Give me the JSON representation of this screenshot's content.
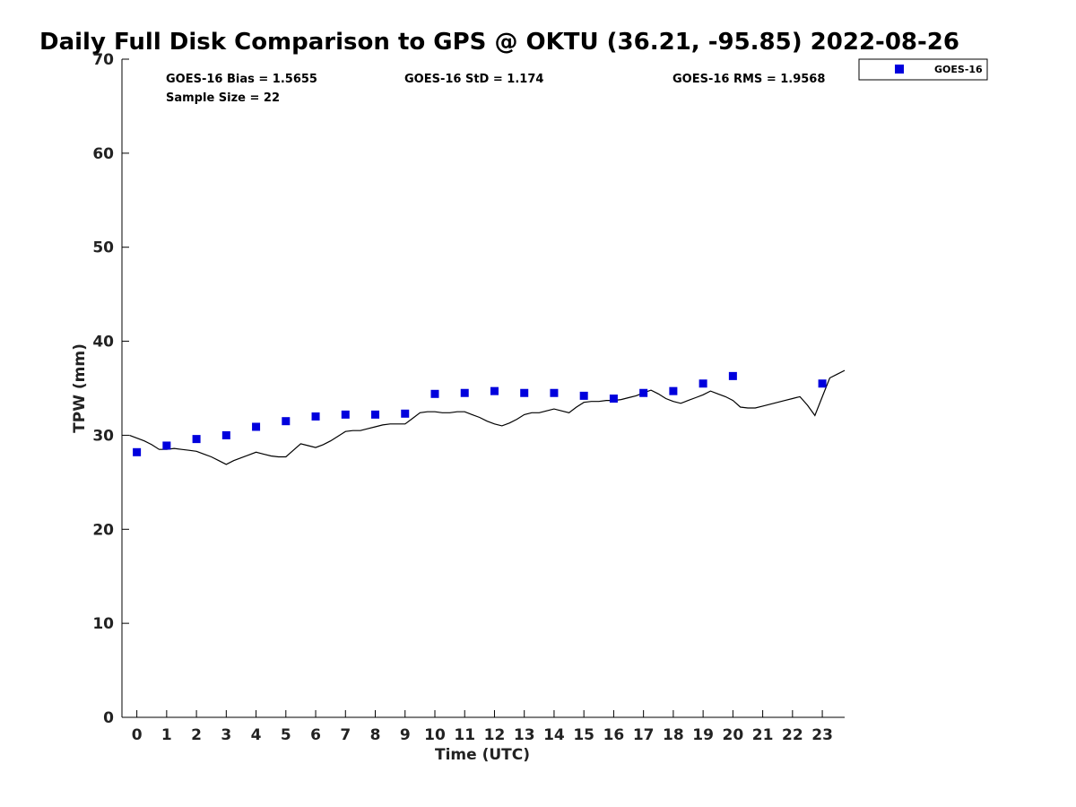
{
  "chart_data": {
    "type": "scatter",
    "title": "Daily Full Disk Comparison to GPS @ OKTU (36.21, -95.85) 2022-08-26",
    "xlabel": "Time (UTC)",
    "ylabel": "TPW (mm)",
    "xlim": [
      -0.5,
      23.75
    ],
    "ylim": [
      0,
      70
    ],
    "x_ticks": [
      0,
      1,
      2,
      3,
      4,
      5,
      6,
      7,
      8,
      9,
      10,
      11,
      12,
      13,
      14,
      15,
      16,
      17,
      18,
      19,
      20,
      21,
      22,
      23
    ],
    "y_ticks": [
      0,
      10,
      20,
      30,
      40,
      50,
      60,
      70
    ],
    "stats": {
      "bias": "GOES-16 Bias = 1.5655",
      "std": "GOES-16 StD = 1.174",
      "rms": "GOES-16 RMS = 1.9568",
      "sample_size": "Sample Size = 22"
    },
    "legend": {
      "position": "outside-top-right",
      "entries": [
        {
          "label": "GOES-16",
          "color": "#0000dd",
          "marker": "square"
        }
      ]
    },
    "series": [
      {
        "name": "GOES-16",
        "kind": "scatter",
        "color": "#0000dd",
        "x": [
          0,
          1,
          2,
          3,
          4,
          5,
          6,
          7,
          8,
          9,
          10,
          11,
          12,
          13,
          14,
          15,
          16,
          17,
          18,
          19,
          20,
          23
        ],
        "y": [
          28.2,
          28.9,
          29.6,
          30.0,
          30.9,
          31.5,
          32.0,
          32.2,
          32.2,
          32.3,
          34.4,
          34.5,
          34.7,
          34.5,
          34.5,
          34.2,
          33.9,
          34.5,
          34.7,
          35.5,
          36.3,
          35.5
        ]
      },
      {
        "kind": "line",
        "color": "#000000",
        "x": [
          -0.25,
          0,
          0.25,
          0.5,
          0.75,
          1,
          1.25,
          1.5,
          1.75,
          2,
          2.25,
          2.5,
          2.75,
          3,
          3.25,
          3.5,
          3.75,
          4,
          4.25,
          4.5,
          4.75,
          5,
          5.25,
          5.5,
          5.75,
          6,
          6.25,
          6.5,
          6.75,
          7,
          7.25,
          7.5,
          7.75,
          8,
          8.25,
          8.5,
          8.75,
          9,
          9.25,
          9.5,
          9.75,
          10,
          10.25,
          10.5,
          10.75,
          11,
          11.25,
          11.5,
          11.75,
          12,
          12.25,
          12.5,
          12.75,
          13,
          13.25,
          13.5,
          13.75,
          14,
          14.25,
          14.5,
          14.75,
          15,
          15.25,
          15.5,
          15.75,
          16,
          16.25,
          16.5,
          16.75,
          17,
          17.25,
          17.5,
          17.75,
          18,
          18.25,
          18.5,
          18.75,
          19,
          19.25,
          19.5,
          19.75,
          20,
          20.25,
          20.5,
          20.75,
          21,
          21.25,
          21.5,
          21.75,
          22,
          22.25,
          22.5,
          22.75,
          23,
          23.25,
          23.5,
          23.75
        ],
        "y": [
          30.0,
          29.7,
          29.4,
          29.0,
          28.5,
          28.5,
          28.6,
          28.5,
          28.4,
          28.3,
          28.0,
          27.7,
          27.3,
          26.9,
          27.3,
          27.6,
          27.9,
          28.2,
          28.0,
          27.8,
          27.7,
          27.7,
          28.4,
          29.1,
          28.9,
          28.7,
          29.0,
          29.4,
          29.9,
          30.4,
          30.5,
          30.5,
          30.7,
          30.9,
          31.1,
          31.2,
          31.2,
          31.2,
          31.8,
          32.4,
          32.5,
          32.5,
          32.4,
          32.4,
          32.5,
          32.5,
          32.2,
          31.9,
          31.5,
          31.2,
          31.0,
          31.3,
          31.7,
          32.2,
          32.4,
          32.4,
          32.6,
          32.8,
          32.6,
          32.4,
          33.0,
          33.5,
          33.6,
          33.6,
          33.7,
          33.7,
          33.8,
          34.0,
          34.2,
          34.5,
          34.8,
          34.4,
          33.9,
          33.6,
          33.4,
          33.7,
          34.0,
          34.3,
          34.7,
          34.4,
          34.1,
          33.7,
          33.0,
          32.9,
          32.9,
          33.1,
          33.3,
          33.5,
          33.7,
          33.9,
          34.1,
          33.2,
          32.1,
          34.1,
          36.1,
          36.5,
          36.9
        ]
      }
    ]
  }
}
